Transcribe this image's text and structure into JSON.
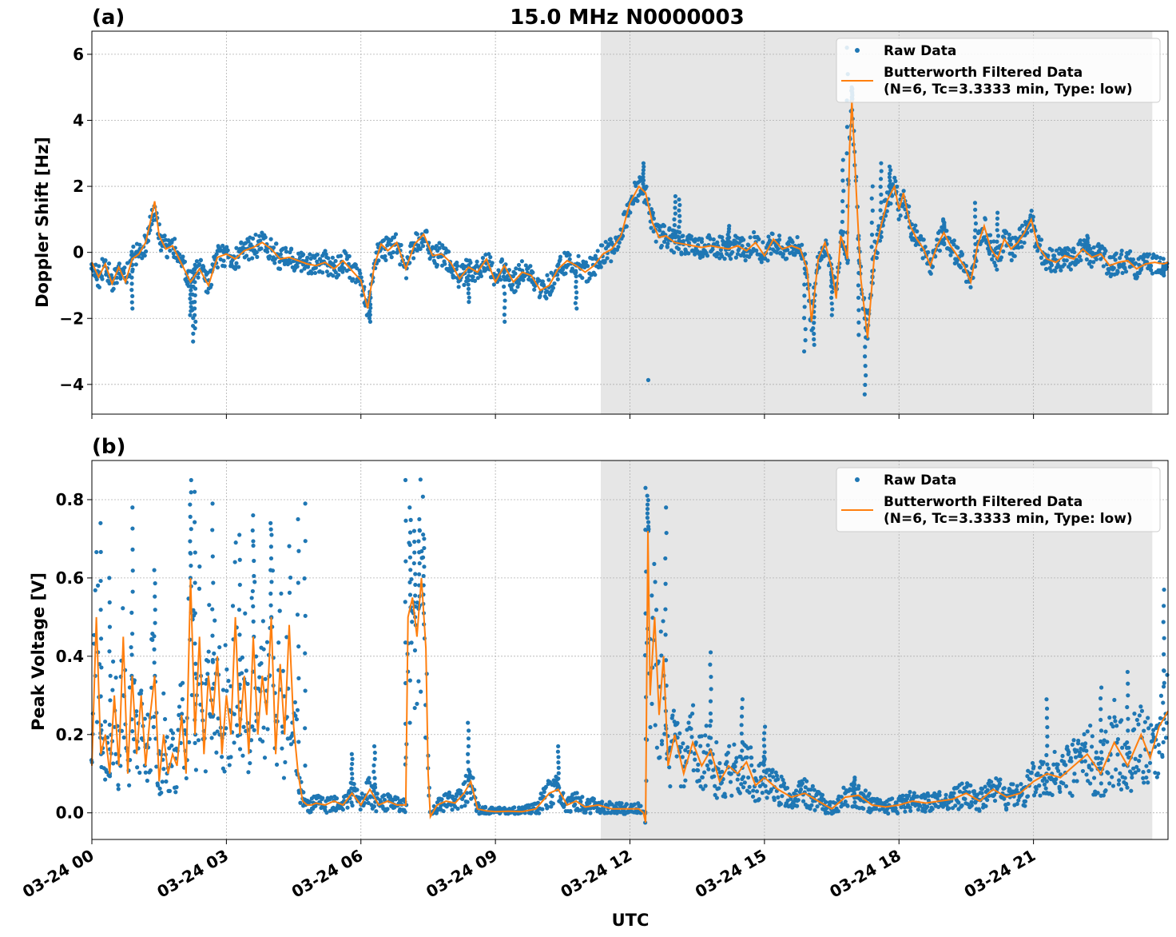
{
  "title": "15.0 MHz N0000003",
  "xlabel": "UTC",
  "x_tick_labels": [
    "03-24 00",
    "03-24 03",
    "03-24 06",
    "03-24 09",
    "03-24 12",
    "03-24 15",
    "03-24 18",
    "03-24 21"
  ],
  "colors": {
    "raw": "#1f77b4",
    "filtered": "#ff7f0e",
    "shade": "#e6e6e6",
    "grid": "#b0b0b0"
  },
  "chart_data": [
    {
      "type": "line",
      "panel_label": "(a)",
      "ylabel": "Doppler Shift [Hz]",
      "xlim_hours": [
        0,
        24
      ],
      "ylim": [
        -4.9,
        6.7
      ],
      "y_ticks": [
        -4,
        -2,
        0,
        2,
        4,
        6
      ],
      "y_tick_labels": [
        "−4",
        "−2",
        "0",
        "2",
        "4",
        "6"
      ],
      "grid": true,
      "legend_position": "top-right",
      "legend": [
        "Raw Data",
        "Butterworth Filtered Data",
        "(N=6, Tc=3.3333 min, Type: low)"
      ],
      "shaded_region_hours": [
        11.35,
        23.65
      ],
      "series": [
        {
          "name": "Butterworth Filtered Data",
          "style": "line",
          "x_hours": [
            0,
            0.15,
            0.3,
            0.45,
            0.6,
            0.75,
            0.9,
            1.05,
            1.2,
            1.3,
            1.4,
            1.5,
            1.65,
            1.8,
            2.0,
            2.2,
            2.4,
            2.6,
            2.8,
            3.0,
            3.2,
            3.4,
            3.6,
            3.8,
            4.0,
            4.2,
            4.4,
            4.6,
            4.8,
            5.0,
            5.2,
            5.4,
            5.6,
            5.8,
            6.0,
            6.15,
            6.3,
            6.45,
            6.6,
            6.8,
            7.0,
            7.2,
            7.4,
            7.6,
            7.8,
            8.0,
            8.2,
            8.4,
            8.6,
            8.8,
            9.0,
            9.2,
            9.4,
            9.6,
            9.8,
            10.0,
            10.2,
            10.4,
            10.6,
            10.8,
            11.0,
            11.2,
            11.4,
            11.6,
            11.8,
            12.0,
            12.2,
            12.35,
            12.5,
            12.65,
            12.8,
            13.0,
            13.2,
            13.4,
            13.6,
            13.8,
            14.0,
            14.2,
            14.4,
            14.6,
            14.8,
            15.0,
            15.2,
            15.4,
            15.6,
            15.8,
            15.95,
            16.05,
            16.2,
            16.35,
            16.5,
            16.6,
            16.7,
            16.8,
            16.85,
            16.9,
            16.95,
            17.05,
            17.15,
            17.3,
            17.45,
            17.6,
            17.75,
            17.9,
            18.0,
            18.1,
            18.25,
            18.4,
            18.55,
            18.7,
            18.85,
            19.0,
            19.15,
            19.3,
            19.45,
            19.6,
            19.75,
            19.9,
            20.05,
            20.2,
            20.35,
            20.5,
            20.65,
            20.8,
            20.95,
            21.1,
            21.3,
            21.5,
            21.7,
            21.9,
            22.1,
            22.3,
            22.5,
            22.7,
            22.9,
            23.1,
            23.3,
            23.5,
            23.7,
            23.9,
            24.0
          ],
          "values": [
            -0.3,
            -0.75,
            -0.35,
            -0.95,
            -0.45,
            -0.9,
            -0.2,
            -0.05,
            0.3,
            0.9,
            1.55,
            0.5,
            0.1,
            0.2,
            -0.35,
            -0.9,
            -0.5,
            -1.0,
            -0.15,
            -0.05,
            -0.2,
            0.05,
            0.15,
            0.3,
            0.1,
            -0.2,
            -0.15,
            -0.25,
            -0.35,
            -0.4,
            -0.3,
            -0.5,
            -0.25,
            -0.55,
            -0.85,
            -1.7,
            -0.4,
            0.25,
            0.05,
            0.3,
            -0.5,
            0.25,
            0.55,
            -0.1,
            -0.05,
            -0.3,
            -0.8,
            -0.45,
            -0.6,
            -0.2,
            -0.9,
            -0.4,
            -0.9,
            -0.6,
            -0.7,
            -1.15,
            -1.0,
            -0.5,
            -0.25,
            -0.4,
            -0.6,
            -0.4,
            -0.05,
            0.1,
            0.5,
            1.5,
            2.0,
            1.8,
            0.9,
            0.45,
            0.5,
            0.3,
            0.25,
            0.2,
            0.15,
            0.2,
            0.15,
            0.1,
            0.2,
            0.05,
            0.3,
            -0.1,
            0.4,
            0.1,
            0.2,
            0.1,
            -0.5,
            -2.1,
            -0.2,
            0.3,
            -0.5,
            -1.4,
            0.5,
            0.1,
            -0.2,
            3.2,
            4.6,
            1.8,
            -0.8,
            -2.6,
            -0.1,
            0.8,
            1.6,
            2.0,
            1.3,
            1.8,
            0.8,
            0.4,
            0.1,
            -0.4,
            0.2,
            0.6,
            0.2,
            -0.1,
            -0.4,
            -0.9,
            0.2,
            0.8,
            0.1,
            -0.2,
            0.4,
            0.1,
            0.3,
            0.6,
            1.0,
            0.2,
            -0.2,
            -0.3,
            -0.1,
            -0.2,
            0.1,
            -0.15,
            -0.05,
            -0.4,
            -0.3,
            -0.25,
            -0.5,
            -0.35,
            -0.3,
            -0.35,
            -0.3
          ]
        },
        {
          "name": "Raw Data",
          "style": "points",
          "x_hours": [
            0.9,
            2.2,
            2.25,
            2.3,
            6.2,
            8.4,
            9.2,
            10.8,
            12.3,
            13.0,
            13.1,
            14.2,
            15.9,
            16.1,
            16.5,
            16.75,
            16.85,
            16.95,
            17.1,
            17.25,
            17.4,
            17.6,
            17.8,
            19.0,
            19.7,
            20.2,
            22.2,
            23.9
          ],
          "values": [
            -1.7,
            -1.9,
            -2.7,
            -2.3,
            -2.1,
            -1.5,
            -2.1,
            -1.7,
            2.7,
            1.7,
            1.6,
            0.8,
            -3.0,
            -2.8,
            -1.9,
            2.8,
            6.2,
            5.0,
            -2.5,
            -4.3,
            2.0,
            2.7,
            2.6,
            1.0,
            1.5,
            1.2,
            0.5,
            -0.7
          ]
        }
      ]
    },
    {
      "type": "line",
      "panel_label": "(b)",
      "ylabel": "Peak Voltage [V]",
      "xlim_hours": [
        0,
        24
      ],
      "ylim": [
        -0.068,
        0.9
      ],
      "y_ticks": [
        0.0,
        0.2,
        0.4,
        0.6,
        0.8
      ],
      "y_tick_labels": [
        "0.0",
        "0.2",
        "0.4",
        "0.6",
        "0.8"
      ],
      "grid": true,
      "legend_position": "top-right",
      "legend": [
        "Raw Data",
        "Butterworth Filtered Data",
        "(N=6, Tc=3.3333 min, Type: low)"
      ],
      "shaded_region_hours": [
        11.35,
        23.65
      ],
      "series": [
        {
          "name": "Butterworth Filtered Data",
          "style": "line",
          "x_hours": [
            0,
            0.1,
            0.2,
            0.3,
            0.4,
            0.5,
            0.6,
            0.7,
            0.8,
            0.9,
            1.0,
            1.1,
            1.2,
            1.3,
            1.4,
            1.5,
            1.6,
            1.7,
            1.8,
            1.9,
            2.0,
            2.1,
            2.2,
            2.3,
            2.4,
            2.5,
            2.6,
            2.7,
            2.8,
            2.9,
            3.0,
            3.1,
            3.2,
            3.3,
            3.4,
            3.5,
            3.6,
            3.7,
            3.8,
            3.9,
            4.0,
            4.1,
            4.2,
            4.3,
            4.4,
            4.5,
            4.6,
            4.7,
            4.8,
            4.9,
            5.0,
            5.2,
            5.4,
            5.6,
            5.8,
            6.0,
            6.2,
            6.4,
            6.6,
            6.8,
            7.0,
            7.05,
            7.15,
            7.25,
            7.35,
            7.45,
            7.5,
            7.55,
            7.7,
            7.9,
            8.1,
            8.3,
            8.45,
            8.6,
            8.8,
            9.0,
            9.3,
            9.6,
            9.9,
            10.2,
            10.4,
            10.6,
            10.8,
            11.0,
            11.3,
            11.6,
            11.9,
            12.2,
            12.3,
            12.35,
            12.4,
            12.45,
            12.55,
            12.65,
            12.75,
            12.85,
            13.0,
            13.2,
            13.4,
            13.6,
            13.8,
            14.0,
            14.2,
            14.4,
            14.6,
            14.8,
            15.0,
            15.3,
            15.6,
            15.9,
            16.2,
            16.5,
            16.8,
            17.1,
            17.4,
            17.7,
            18.0,
            18.3,
            18.6,
            18.9,
            19.2,
            19.5,
            19.8,
            20.1,
            20.4,
            20.7,
            21.0,
            21.3,
            21.6,
            21.9,
            22.2,
            22.5,
            22.8,
            23.1,
            23.4,
            23.6,
            23.8,
            24.0
          ],
          "values": [
            0.12,
            0.5,
            0.15,
            0.2,
            0.1,
            0.3,
            0.12,
            0.45,
            0.1,
            0.35,
            0.15,
            0.3,
            0.12,
            0.25,
            0.35,
            0.08,
            0.2,
            0.1,
            0.15,
            0.12,
            0.25,
            0.1,
            0.6,
            0.2,
            0.45,
            0.15,
            0.35,
            0.25,
            0.4,
            0.15,
            0.3,
            0.2,
            0.5,
            0.2,
            0.35,
            0.15,
            0.45,
            0.2,
            0.35,
            0.25,
            0.5,
            0.15,
            0.38,
            0.2,
            0.48,
            0.22,
            0.1,
            0.03,
            0.02,
            0.02,
            0.025,
            0.02,
            0.03,
            0.02,
            0.05,
            0.02,
            0.06,
            0.02,
            0.03,
            0.02,
            0.02,
            0.5,
            0.55,
            0.45,
            0.6,
            0.42,
            0.1,
            -0.01,
            0.02,
            0.03,
            0.025,
            0.05,
            0.08,
            0.01,
            0.005,
            0.003,
            0.004,
            0.003,
            0.01,
            0.05,
            0.06,
            0.02,
            0.03,
            0.015,
            0.02,
            0.01,
            0.01,
            0.01,
            0.0,
            -0.025,
            0.72,
            0.3,
            0.5,
            0.25,
            0.4,
            0.12,
            0.2,
            0.1,
            0.18,
            0.12,
            0.16,
            0.08,
            0.12,
            0.1,
            0.13,
            0.07,
            0.09,
            0.06,
            0.04,
            0.05,
            0.03,
            0.01,
            0.04,
            0.045,
            0.02,
            0.015,
            0.02,
            0.03,
            0.025,
            0.03,
            0.035,
            0.05,
            0.03,
            0.06,
            0.04,
            0.05,
            0.08,
            0.1,
            0.09,
            0.12,
            0.15,
            0.1,
            0.18,
            0.12,
            0.2,
            0.14,
            0.22,
            0.26
          ]
        },
        {
          "name": "Raw Data",
          "style": "points",
          "x_hours": [
            0.2,
            0.4,
            0.9,
            1.4,
            2.2,
            2.3,
            2.7,
            3.3,
            3.6,
            4.0,
            4.6,
            4.75,
            5.8,
            6.3,
            7.0,
            7.1,
            7.2,
            7.3,
            7.4,
            8.4,
            10.4,
            12.35,
            12.4,
            12.8,
            13.8,
            14.5,
            15.0,
            17.0,
            21.3,
            22.5,
            23.1,
            23.9
          ],
          "values": [
            0.74,
            0.6,
            0.78,
            0.62,
            0.85,
            0.82,
            0.79,
            0.71,
            0.76,
            0.74,
            0.75,
            0.79,
            0.15,
            0.17,
            0.85,
            0.78,
            0.72,
            0.75,
            0.7,
            0.23,
            0.17,
            0.83,
            0.81,
            0.78,
            0.41,
            0.29,
            0.22,
            0.09,
            0.29,
            0.32,
            0.36,
            0.57
          ]
        }
      ]
    }
  ]
}
